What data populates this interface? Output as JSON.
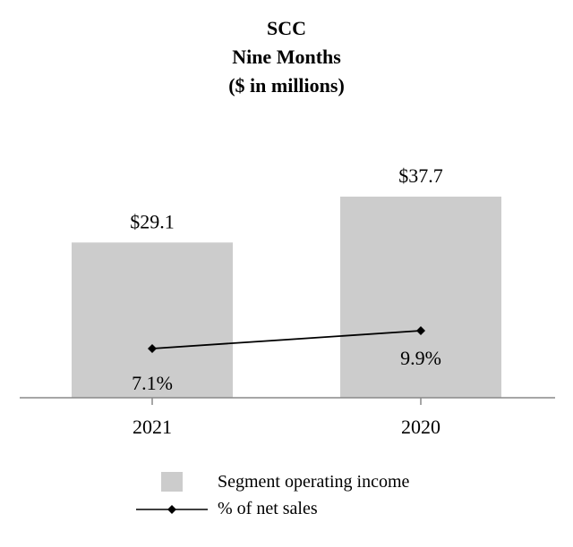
{
  "chart_data": {
    "type": "bar",
    "title_lines": [
      "SCC",
      "Nine Months",
      "($ in millions)"
    ],
    "categories": [
      "2021",
      "2020"
    ],
    "series": [
      {
        "name": "Segment operating income",
        "kind": "bar",
        "values": [
          29.1,
          37.7
        ],
        "labels": [
          "$29.1",
          "$37.7"
        ],
        "color": "#cccccc"
      },
      {
        "name": "% of net sales",
        "kind": "line",
        "values": [
          7.1,
          9.9
        ],
        "labels": [
          "7.1%",
          "9.9%"
        ],
        "color": "#000000",
        "marker": "diamond"
      }
    ],
    "grid": false,
    "legend_position": "bottom-center"
  }
}
